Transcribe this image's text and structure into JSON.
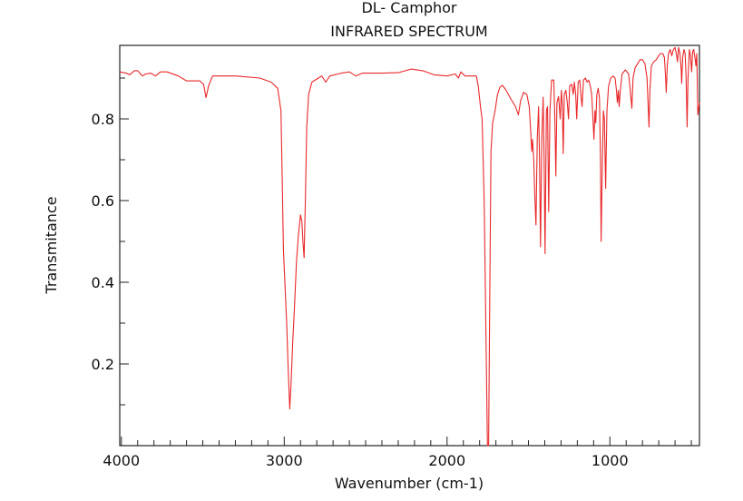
{
  "chart_data": {
    "type": "line",
    "title": "DL- Camphor",
    "subtitle": "INFRARED SPECTRUM",
    "xlabel": "Wavenumber (cm-1)",
    "ylabel": "Transmitance",
    "xlim": [
      4010,
      450
    ],
    "ylim": [
      0,
      0.98
    ],
    "x_ticks": [
      4000,
      3000,
      2000,
      1000
    ],
    "x_tick_labels": [
      "4000",
      "3000",
      "2000",
      "1000"
    ],
    "y_ticks": [
      0.2,
      0.4,
      0.6,
      0.8
    ],
    "y_tick_labels": [
      "0.2",
      "0.4",
      "0.6",
      "0.8"
    ],
    "grid": false,
    "series": [
      {
        "name": "DL- Camphor",
        "color": "#e8282a",
        "points": [
          [
            4010,
            0.915
          ],
          [
            3970,
            0.912
          ],
          [
            3950,
            0.908
          ],
          [
            3920,
            0.918
          ],
          [
            3900,
            0.918
          ],
          [
            3870,
            0.905
          ],
          [
            3850,
            0.91
          ],
          [
            3820,
            0.912
          ],
          [
            3790,
            0.905
          ],
          [
            3760,
            0.915
          ],
          [
            3720,
            0.915
          ],
          [
            3650,
            0.905
          ],
          [
            3600,
            0.893
          ],
          [
            3520,
            0.893
          ],
          [
            3495,
            0.885
          ],
          [
            3480,
            0.852
          ],
          [
            3465,
            0.88
          ],
          [
            3440,
            0.905
          ],
          [
            3300,
            0.905
          ],
          [
            3150,
            0.9
          ],
          [
            3080,
            0.89
          ],
          [
            3040,
            0.875
          ],
          [
            3020,
            0.82
          ],
          [
            3012,
            0.65
          ],
          [
            3005,
            0.48
          ],
          [
            2998,
            0.42
          ],
          [
            2985,
            0.3
          ],
          [
            2975,
            0.18
          ],
          [
            2966,
            0.09
          ],
          [
            2958,
            0.15
          ],
          [
            2948,
            0.25
          ],
          [
            2938,
            0.33
          ],
          [
            2925,
            0.45
          ],
          [
            2912,
            0.52
          ],
          [
            2900,
            0.565
          ],
          [
            2892,
            0.55
          ],
          [
            2885,
            0.5
          ],
          [
            2878,
            0.46
          ],
          [
            2870,
            0.6
          ],
          [
            2862,
            0.78
          ],
          [
            2850,
            0.86
          ],
          [
            2830,
            0.89
          ],
          [
            2790,
            0.9
          ],
          [
            2770,
            0.905
          ],
          [
            2745,
            0.89
          ],
          [
            2720,
            0.905
          ],
          [
            2650,
            0.912
          ],
          [
            2600,
            0.915
          ],
          [
            2560,
            0.905
          ],
          [
            2520,
            0.912
          ],
          [
            2400,
            0.912
          ],
          [
            2300,
            0.913
          ],
          [
            2220,
            0.922
          ],
          [
            2150,
            0.918
          ],
          [
            2080,
            0.908
          ],
          [
            2000,
            0.905
          ],
          [
            1950,
            0.91
          ],
          [
            1930,
            0.9
          ],
          [
            1915,
            0.915
          ],
          [
            1890,
            0.905
          ],
          [
            1820,
            0.905
          ],
          [
            1808,
            0.88
          ],
          [
            1795,
            0.83
          ],
          [
            1785,
            0.8
          ],
          [
            1772,
            0.6
          ],
          [
            1762,
            0.3
          ],
          [
            1752,
            0.0
          ],
          [
            1745,
            0.0
          ],
          [
            1738,
            0.35
          ],
          [
            1730,
            0.72
          ],
          [
            1720,
            0.79
          ],
          [
            1705,
            0.82
          ],
          [
            1690,
            0.86
          ],
          [
            1675,
            0.878
          ],
          [
            1660,
            0.882
          ],
          [
            1640,
            0.872
          ],
          [
            1610,
            0.85
          ],
          [
            1580,
            0.83
          ],
          [
            1562,
            0.81
          ],
          [
            1548,
            0.845
          ],
          [
            1530,
            0.865
          ],
          [
            1510,
            0.86
          ],
          [
            1495,
            0.83
          ],
          [
            1485,
            0.76
          ],
          [
            1480,
            0.72
          ],
          [
            1475,
            0.75
          ],
          [
            1468,
            0.7
          ],
          [
            1460,
            0.6
          ],
          [
            1454,
            0.54
          ],
          [
            1446,
            0.75
          ],
          [
            1438,
            0.83
          ],
          [
            1432,
            0.7
          ],
          [
            1426,
            0.487
          ],
          [
            1418,
            0.75
          ],
          [
            1410,
            0.853
          ],
          [
            1404,
            0.7
          ],
          [
            1398,
            0.47
          ],
          [
            1390,
            0.82
          ],
          [
            1383,
            0.83
          ],
          [
            1376,
            0.573
          ],
          [
            1368,
            0.82
          ],
          [
            1358,
            0.895
          ],
          [
            1345,
            0.895
          ],
          [
            1338,
            0.8
          ],
          [
            1332,
            0.66
          ],
          [
            1325,
            0.84
          ],
          [
            1315,
            0.855
          ],
          [
            1305,
            0.8
          ],
          [
            1298,
            0.87
          ],
          [
            1292,
            0.83
          ],
          [
            1287,
            0.715
          ],
          [
            1280,
            0.86
          ],
          [
            1270,
            0.87
          ],
          [
            1262,
            0.84
          ],
          [
            1254,
            0.8
          ],
          [
            1247,
            0.88
          ],
          [
            1235,
            0.885
          ],
          [
            1225,
            0.86
          ],
          [
            1218,
            0.89
          ],
          [
            1210,
            0.86
          ],
          [
            1204,
            0.8
          ],
          [
            1195,
            0.89
          ],
          [
            1185,
            0.895
          ],
          [
            1178,
            0.86
          ],
          [
            1171,
            0.83
          ],
          [
            1162,
            0.895
          ],
          [
            1150,
            0.9
          ],
          [
            1140,
            0.89
          ],
          [
            1130,
            0.895
          ],
          [
            1120,
            0.88
          ],
          [
            1112,
            0.86
          ],
          [
            1104,
            0.8
          ],
          [
            1098,
            0.75
          ],
          [
            1092,
            0.82
          ],
          [
            1087,
            0.79
          ],
          [
            1080,
            0.86
          ],
          [
            1072,
            0.875
          ],
          [
            1064,
            0.85
          ],
          [
            1058,
            0.7
          ],
          [
            1054,
            0.5
          ],
          [
            1046,
            0.7
          ],
          [
            1040,
            0.82
          ],
          [
            1034,
            0.8
          ],
          [
            1026,
            0.63
          ],
          [
            1018,
            0.82
          ],
          [
            1008,
            0.88
          ],
          [
            995,
            0.9
          ],
          [
            980,
            0.905
          ],
          [
            968,
            0.9
          ],
          [
            960,
            0.87
          ],
          [
            954,
            0.84
          ],
          [
            948,
            0.87
          ],
          [
            943,
            0.83
          ],
          [
            936,
            0.87
          ],
          [
            925,
            0.91
          ],
          [
            905,
            0.92
          ],
          [
            885,
            0.91
          ],
          [
            875,
            0.87
          ],
          [
            865,
            0.826
          ],
          [
            858,
            0.9
          ],
          [
            845,
            0.925
          ],
          [
            830,
            0.935
          ],
          [
            815,
            0.945
          ],
          [
            800,
            0.945
          ],
          [
            785,
            0.935
          ],
          [
            772,
            0.9
          ],
          [
            765,
            0.83
          ],
          [
            760,
            0.78
          ],
          [
            754,
            0.87
          ],
          [
            745,
            0.93
          ],
          [
            730,
            0.94
          ],
          [
            715,
            0.945
          ],
          [
            700,
            0.955
          ],
          [
            690,
            0.96
          ],
          [
            675,
            0.96
          ],
          [
            665,
            0.95
          ],
          [
            658,
            0.9
          ],
          [
            654,
            0.865
          ],
          [
            648,
            0.93
          ],
          [
            640,
            0.96
          ],
          [
            630,
            0.97
          ],
          [
            620,
            0.955
          ],
          [
            610,
            0.97
          ],
          [
            600,
            0.975
          ],
          [
            592,
            0.96
          ],
          [
            585,
            0.94
          ],
          [
            578,
            0.975
          ],
          [
            570,
            0.96
          ],
          [
            562,
            0.92
          ],
          [
            559,
            0.887
          ],
          [
            553,
            0.95
          ],
          [
            545,
            0.97
          ],
          [
            538,
            0.96
          ],
          [
            532,
            0.9
          ],
          [
            526,
            0.78
          ],
          [
            520,
            0.9
          ],
          [
            512,
            0.97
          ],
          [
            505,
            0.955
          ],
          [
            498,
            0.915
          ],
          [
            492,
            0.965
          ],
          [
            485,
            0.97
          ],
          [
            478,
            0.95
          ],
          [
            472,
            0.93
          ],
          [
            466,
            0.96
          ],
          [
            460,
            0.81
          ],
          [
            450,
            0.84
          ]
        ]
      }
    ]
  }
}
